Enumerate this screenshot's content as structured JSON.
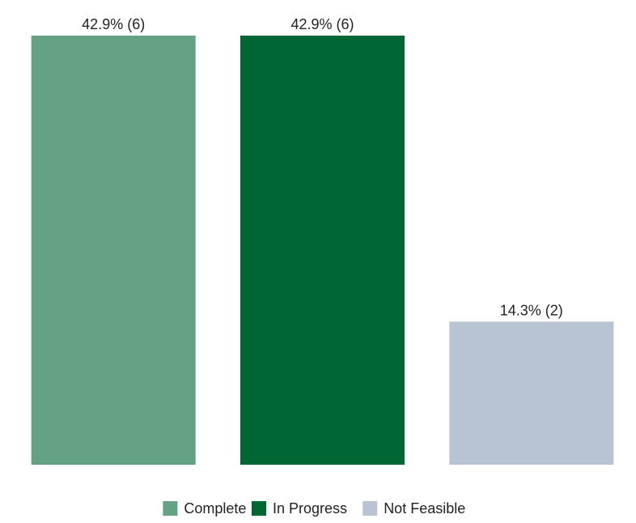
{
  "chart_data": {
    "type": "bar",
    "categories": [
      "Complete",
      "In Progress",
      "Not Feasible"
    ],
    "values": [
      42.9,
      42.9,
      14.3
    ],
    "counts": [
      6,
      6,
      2
    ],
    "data_labels": [
      "42.9% (6)",
      "42.9% (6)",
      "14.3% (2)"
    ],
    "colors": [
      "#64a283",
      "#006633",
      "#b8c4d4"
    ],
    "title": "",
    "xlabel": "",
    "ylabel": "",
    "ylim": [
      0,
      42.9
    ],
    "grid": false,
    "legend_position": "bottom-center"
  }
}
